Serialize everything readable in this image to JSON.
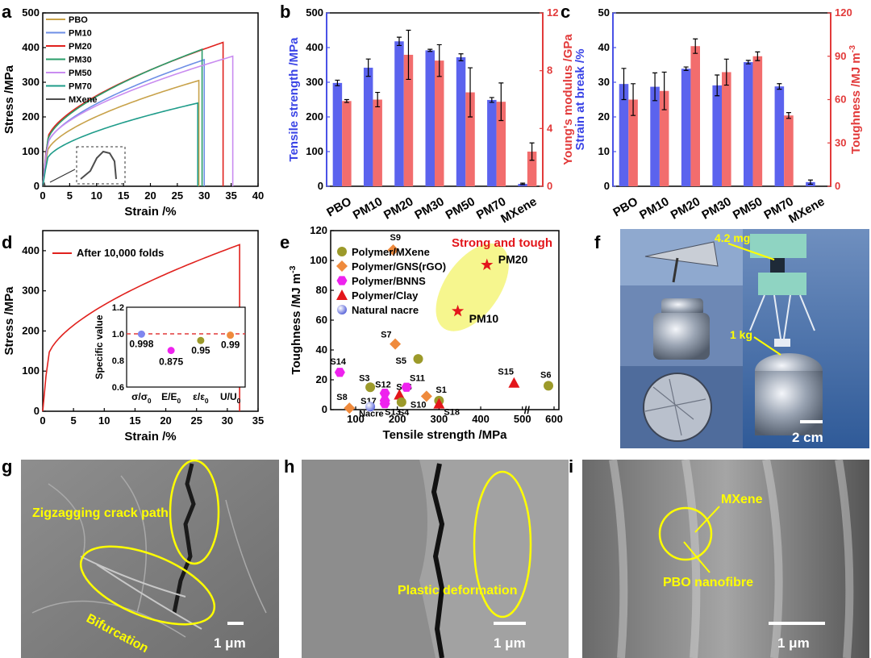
{
  "panel_labels": {
    "a": "a",
    "b": "b",
    "c": "c",
    "d": "d",
    "e": "e",
    "f": "f",
    "g": "g",
    "h": "h",
    "i": "i"
  },
  "chart_data": [
    {
      "id": "a",
      "type": "line",
      "xlabel": "Strain /%",
      "ylabel": "Stress /MPa",
      "xlim": [
        0,
        40
      ],
      "ylim": [
        0,
        500
      ],
      "xticks": [
        "0",
        "5",
        "10",
        "15",
        "20",
        "25",
        "30",
        "35",
        "40"
      ],
      "yticks": [
        "0",
        "100",
        "200",
        "300",
        "400",
        "500"
      ],
      "legend_position": "top-left",
      "series": [
        {
          "name": "PBO",
          "color": "#c8a24a",
          "break_strain": 29.0,
          "max_stress": 305
        },
        {
          "name": "PM10",
          "color": "#6e8fe6",
          "break_strain": 30.0,
          "max_stress": 365
        },
        {
          "name": "PM20",
          "color": "#e0211d",
          "break_strain": 33.5,
          "max_stress": 415
        },
        {
          "name": "PM30",
          "color": "#2a9d6a",
          "break_strain": 29.6,
          "max_stress": 395
        },
        {
          "name": "PM50",
          "color": "#c98cf0",
          "break_strain": 35.3,
          "max_stress": 375
        },
        {
          "name": "PM70",
          "color": "#1f9c8a",
          "break_strain": 28.8,
          "max_stress": 240
        },
        {
          "name": "MXene",
          "color": "#4d4d4d",
          "break_strain": 0.3,
          "max_stress": 8
        }
      ]
    },
    {
      "id": "b",
      "type": "bar",
      "categories": [
        "PBO",
        "PM10",
        "PM20",
        "PM30",
        "PM50",
        "PM70",
        "MXene"
      ],
      "ylabel": "Tensile strength /MPa",
      "y2label": "Young's modulus /GPa",
      "ylim": [
        0,
        500
      ],
      "y2lim": [
        0,
        12
      ],
      "yticks": [
        "0",
        "100",
        "200",
        "300",
        "400",
        "500"
      ],
      "y2ticks": [
        "0",
        "4",
        "8",
        "12"
      ],
      "series": [
        {
          "name": "Tensile strength",
          "axis": "left",
          "color": "#5b63ee",
          "values": [
            298,
            342,
            418,
            392,
            372,
            249,
            7
          ],
          "errors": [
            8,
            25,
            12,
            3,
            10,
            7,
            2
          ]
        },
        {
          "name": "Young's modulus",
          "axis": "right",
          "color": "#f26d6d",
          "values": [
            5.9,
            6.0,
            9.1,
            8.7,
            6.5,
            5.85,
            2.4
          ],
          "errors": [
            0.1,
            0.5,
            1.7,
            1.1,
            1.7,
            1.3,
            0.6
          ]
        }
      ]
    },
    {
      "id": "c",
      "type": "bar",
      "categories": [
        "PBO",
        "PM10",
        "PM20",
        "PM30",
        "PM50",
        "PM70",
        "MXene"
      ],
      "ylabel": "Strain at break /%",
      "y2label": "Toughness /MJ m",
      "y2label_sup": "-3",
      "ylim": [
        0,
        50
      ],
      "y2lim": [
        0,
        120
      ],
      "yticks": [
        "0",
        "10",
        "20",
        "30",
        "40",
        "50"
      ],
      "y2ticks": [
        "0",
        "30",
        "60",
        "90",
        "120"
      ],
      "series": [
        {
          "name": "Strain at break",
          "axis": "left",
          "color": "#5b63ee",
          "values": [
            29.5,
            28.7,
            33.9,
            29.1,
            35.8,
            28.8,
            1.2
          ],
          "errors": [
            4.5,
            4,
            0.5,
            3,
            0.5,
            0.8,
            0.6
          ]
        },
        {
          "name": "Toughness",
          "axis": "right",
          "color": "#f26d6d",
          "values": [
            60,
            66,
            97,
            79,
            90,
            49,
            0
          ],
          "errors": [
            11,
            13,
            5,
            9,
            3,
            2,
            0
          ]
        }
      ]
    },
    {
      "id": "d",
      "type": "line",
      "xlabel": "Strain /%",
      "ylabel": "Stress /MPa",
      "xlim": [
        0,
        35
      ],
      "ylim": [
        0,
        450
      ],
      "xticks": [
        "0",
        "5",
        "10",
        "15",
        "20",
        "25",
        "30",
        "35"
      ],
      "yticks": [
        "0",
        "100",
        "200",
        "300",
        "400"
      ],
      "legend": "After 10,000 folds",
      "series": [
        {
          "name": "After 10,000 folds",
          "color": "#e0211d",
          "break_strain": 32.0,
          "max_stress": 415
        }
      ],
      "inset": {
        "type": "scatter",
        "ylabel": "Specific value",
        "ylim": [
          0.6,
          1.2
        ],
        "yticks": [
          "0.6",
          "0.8",
          "1.0",
          "1.2"
        ],
        "categories": [
          "σ/σ0",
          "E/E0",
          "ε/ε0",
          "U/U0"
        ],
        "cat_labels": [
          {
            "main": "σ/σ",
            "sub": "0"
          },
          {
            "main": "E/E",
            "sub": "0"
          },
          {
            "main": "ε/ε",
            "sub": "0"
          },
          {
            "main": "U/U",
            "sub": "0"
          }
        ],
        "values": [
          0.998,
          0.875,
          0.95,
          0.99
        ],
        "value_labels": [
          "0.998",
          "0.875",
          "0.95",
          "0.99"
        ],
        "colors": [
          "#7f86f0",
          "#ee22ee",
          "#9c9a2a",
          "#ef8a3c"
        ],
        "reference": 1.0
      }
    },
    {
      "id": "e",
      "type": "scatter",
      "xlabel": "Tensile strength /MPa",
      "ylabel": "Toughness /MJ m",
      "ylabel_sup": "-3",
      "ylim": [
        0,
        120
      ],
      "yticks": [
        "0",
        "20",
        "40",
        "60",
        "80",
        "100",
        "120"
      ],
      "xticks": [
        "100",
        "200",
        "300",
        "400",
        "500",
        "600"
      ],
      "axis_break": "between 500 and 600",
      "annotation": "Strong and tough",
      "groups": [
        {
          "name": "Polymer/MXene",
          "color": "#9c9a2a",
          "marker": "circle"
        },
        {
          "name": "Polymer/GNS(rGO)",
          "color": "#ef8a3c",
          "marker": "diamond"
        },
        {
          "name": "Polymer/BNNS",
          "color": "#ee22ee",
          "marker": "hexagon"
        },
        {
          "name": "Polymer/Clay",
          "color": "#e3161b",
          "marker": "triangle"
        },
        {
          "name": "Natural nacre",
          "color": "#7f86f0",
          "marker": "sphere"
        }
      ],
      "points": [
        {
          "label": "S9",
          "x": 190,
          "y": 107,
          "group": 1
        },
        {
          "label": "S7",
          "x": 195,
          "y": 44,
          "group": 1
        },
        {
          "label": "S5",
          "x": 250,
          "y": 34,
          "group": 0
        },
        {
          "label": "S14",
          "x": 62,
          "y": 25,
          "group": 2
        },
        {
          "label": "S3",
          "x": 135,
          "y": 15,
          "group": 0
        },
        {
          "label": "S12",
          "x": 170,
          "y": 11,
          "group": 2
        },
        {
          "label": "S16",
          "x": 205,
          "y": 10,
          "group": 3
        },
        {
          "label": "S11",
          "x": 222,
          "y": 15,
          "group": 2
        },
        {
          "label": "S1",
          "x": 300,
          "y": 6,
          "group": 0
        },
        {
          "label": "S17",
          "x": 170,
          "y": 6,
          "group": 2
        },
        {
          "label": "S8",
          "x": 85,
          "y": 1,
          "group": 1
        },
        {
          "label": "S13",
          "x": 170,
          "y": 4,
          "group": 2
        },
        {
          "label": "S4",
          "x": 210,
          "y": 5,
          "group": 0
        },
        {
          "label": "S10",
          "x": 270,
          "y": 9,
          "group": 1
        },
        {
          "label": "S18",
          "x": 300,
          "y": 4,
          "group": 3
        },
        {
          "label": "S15",
          "x": 480,
          "y": 18,
          "group": 3
        },
        {
          "label": "S6",
          "x": 590,
          "y": 16,
          "group": 0
        },
        {
          "label": "Nacre",
          "x": 135,
          "y": 2,
          "group": 4
        },
        {
          "label": "PM20",
          "x": 415,
          "y": 97,
          "group": 5
        },
        {
          "label": "PM10",
          "x": 345,
          "y": 66,
          "group": 5
        }
      ]
    }
  ],
  "photo_f": {
    "mass_label": "4.2 mg",
    "weight_label": "1 kg",
    "scale_label": "2 cm"
  },
  "sem_g": {
    "annotations": [
      "Zigzagging crack path",
      "Bifurcation"
    ],
    "scale_label": "1 μm"
  },
  "sem_h": {
    "annotations": [
      "Plastic deformation"
    ],
    "scale_label": "1 μm"
  },
  "sem_i": {
    "annotations": [
      "MXene",
      "PBO nanofibre"
    ],
    "scale_label": "1 μm"
  }
}
